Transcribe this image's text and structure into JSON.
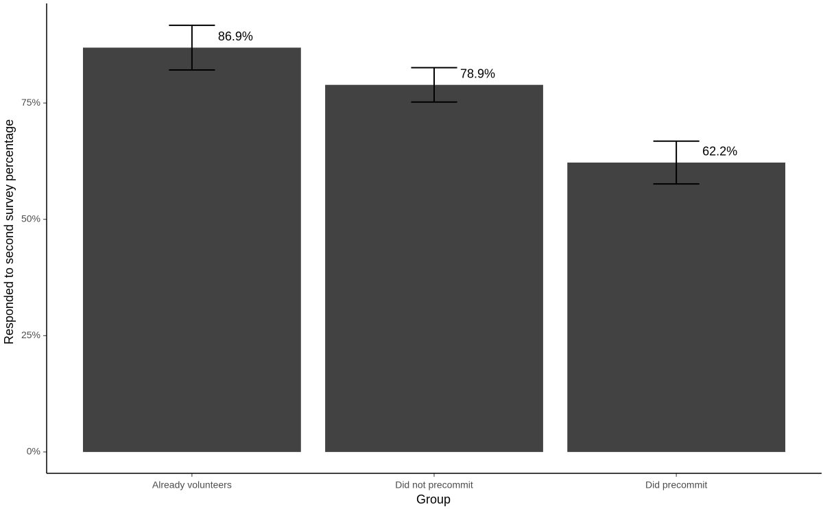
{
  "chart_data": {
    "type": "bar",
    "x_label": "Group",
    "y_label": "Responded to second survey percentage",
    "categories": [
      "Already volunteers",
      "Did not precommit",
      "Did precommit"
    ],
    "values": [
      86.9,
      78.9,
      62.2
    ],
    "value_labels": [
      "86.9%",
      "78.9%",
      "62.2%"
    ],
    "errors": [
      4.8,
      3.7,
      4.6
    ],
    "color": "#424242",
    "ylim": [
      -4.59,
      96.4
    ],
    "yticks": [
      {
        "value": 0,
        "label": "0%"
      },
      {
        "value": 25,
        "label": "25%"
      },
      {
        "value": 50,
        "label": "50%"
      },
      {
        "value": 75,
        "label": "75%"
      }
    ],
    "grid": false
  }
}
